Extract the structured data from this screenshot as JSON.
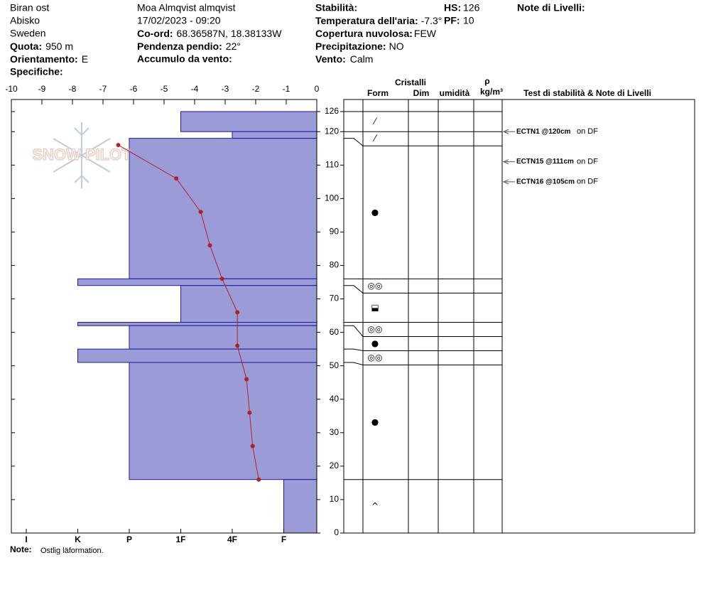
{
  "header": {
    "location": "Biran ost",
    "area": "Abisko",
    "country": "Sweden",
    "elevation": {
      "label": "Quota:",
      "value": "950 m"
    },
    "aspect": {
      "label": "Orientamento:",
      "value": "E"
    },
    "specifics": {
      "label": "Specifiche:"
    },
    "observer": "Moa Almqvist almqvist",
    "datetime": "17/02/2023 - 09:20",
    "coords": {
      "label": "Co-ord:",
      "value": "68.36587N, 18.38133W"
    },
    "slope": {
      "label": "Pendenza pendio:",
      "value": "22°"
    },
    "wind_loading": {
      "label": "Accumulo da vento:"
    },
    "stability": {
      "label": "Stabilità:"
    },
    "air_temp": {
      "label": "Temperatura dell'aria:",
      "value": "-7.3°C"
    },
    "cloud": {
      "label": "Copertura nuvolosa:",
      "value": "FEW"
    },
    "precip": {
      "label": "Precipitazione:",
      "value": "NO"
    },
    "wind": {
      "label": "Vento:",
      "value": "Calm"
    },
    "hs": {
      "label": "HS:",
      "value": 126
    },
    "pf": {
      "label": "PF:",
      "value": 10
    },
    "layer_notes": {
      "label": "Note di Livelli:"
    }
  },
  "logo": "SNOW PILOT",
  "chart_data": {
    "type": "snow-profile",
    "tlim": [
      -10,
      0
    ],
    "tticks": [
      -10,
      -9,
      -8,
      -7,
      -6,
      -5,
      -4,
      -3,
      -2,
      -1,
      0
    ],
    "ylim": [
      0,
      126
    ],
    "yticks": [
      0,
      10,
      20,
      30,
      40,
      50,
      60,
      70,
      80,
      90,
      100,
      110,
      120,
      126
    ],
    "hardness_scale": [
      "I",
      "K",
      "P",
      "1F",
      "4F",
      "F"
    ],
    "bar_color": "#9b9bd8",
    "bar_edge": "#1a1a9a",
    "temp_color": "#b22222",
    "layers": [
      {
        "top": 126,
        "bottom": 120,
        "hardness": "1F",
        "form": "⁄"
      },
      {
        "top": 120,
        "bottom": 118,
        "hardness": "4F",
        "form": "⁄"
      },
      {
        "top": 118,
        "bottom": 76,
        "hardness": "P",
        "form": "●"
      },
      {
        "top": 76,
        "bottom": 74,
        "hardness": "K",
        "form": "◎◎"
      },
      {
        "top": 74,
        "bottom": 63,
        "hardness": "1F",
        "form": "⬓"
      },
      {
        "top": 63,
        "bottom": 62,
        "hardness": "K",
        "form": "◎◎"
      },
      {
        "top": 62,
        "bottom": 55,
        "hardness": "P",
        "form": "●"
      },
      {
        "top": 55,
        "bottom": 51,
        "hardness": "K",
        "form": "◎◎"
      },
      {
        "top": 51,
        "bottom": 16,
        "hardness": "P",
        "form": "●"
      },
      {
        "top": 16,
        "bottom": 0,
        "hardness": "F",
        "form": "^"
      }
    ],
    "temperature": {
      "depths": [
        116,
        106,
        96,
        86,
        76,
        66,
        56,
        46,
        36,
        26,
        16
      ],
      "values": [
        -6.5,
        -4.6,
        -3.8,
        -3.5,
        -3.1,
        -2.6,
        -2.6,
        -2.3,
        -2.2,
        -2.1,
        -1.9
      ]
    },
    "columns": {
      "crystals": "Cristalli",
      "form": "Form",
      "size": "Dim",
      "moisture": "umidità",
      "rho": "ρ",
      "density_unit": "kg/m³",
      "tests": "Test di stabilità & Note di Livelli"
    },
    "tests": [
      {
        "label": "ECTN1 @120cm",
        "note": "on DF",
        "depth": 120
      },
      {
        "label": "ECTN15 @111cm",
        "note": "on DF",
        "depth": 111
      },
      {
        "label": "ECTN16 @105cm",
        "note": "on DF",
        "depth": 105
      }
    ]
  },
  "note": {
    "label": "Note:",
    "text": "Ostlig läformation."
  }
}
